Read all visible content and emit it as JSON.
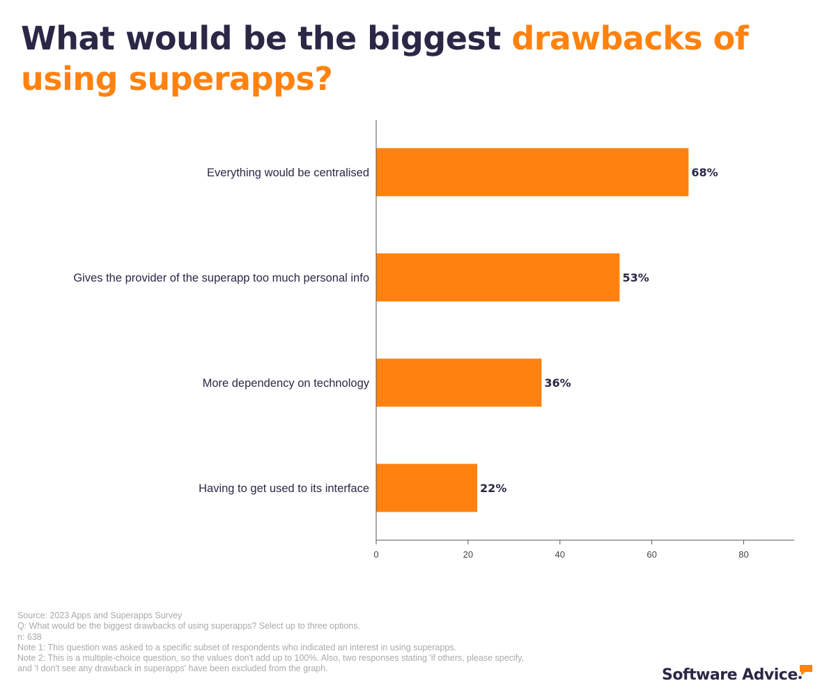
{
  "title": {
    "part1": "What would be the biggest ",
    "part2": "drawbacks of using superapps?"
  },
  "colors": {
    "title_dark": "#2b2846",
    "accent": "#ff8210",
    "bar": "#ff8210",
    "axis": "#555555",
    "notes": "#a9a9a9"
  },
  "chart_data": {
    "type": "bar",
    "orientation": "horizontal",
    "categories": [
      "Everything would be centralised",
      "Gives the provider of the superapp too much personal info",
      "More dependency on technology",
      "Having to get used to its interface"
    ],
    "values": [
      68,
      53,
      36,
      22
    ],
    "value_labels": [
      "68%",
      "53%",
      "36%",
      "22%"
    ],
    "xlim": [
      0,
      91
    ],
    "xticks": [
      0,
      20,
      40,
      60,
      80
    ],
    "xlabel": "",
    "ylabel": "",
    "grid": false,
    "legend": "none"
  },
  "footnotes": {
    "source": "Source: 2023 Apps and Superapps Survey",
    "question": "Q: What would be the biggest drawbacks of using superapps? Select up to three options.",
    "n": "n: 638",
    "note1": "Note 1: This question was asked to a specific subset of respondents who indicated an interest in using superapps.",
    "note2_line1": "Note 2: This is a multiple-choice question, so the values don't add up to 100%. Also, two responses stating 'if others, please specify,",
    "note2_line2": "and 'I don't see any drawback in superapps' have been excluded from the graph."
  },
  "logo": {
    "text": "Software Advice",
    "icon": "speech-bubble-icon"
  }
}
